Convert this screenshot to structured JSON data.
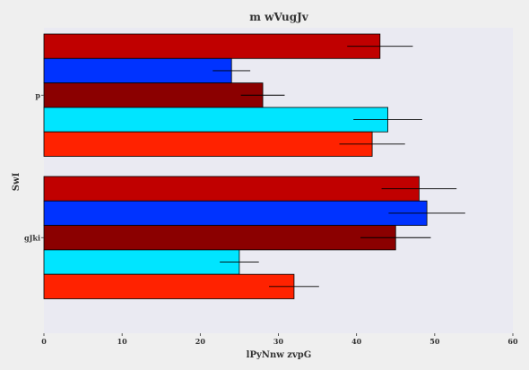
{
  "chart_data": {
    "type": "bar",
    "orientation": "horizontal",
    "title": "m wVugJv",
    "xlabel": "lPyNnw zvpG",
    "ylabel": "SwI",
    "xlim": [
      0,
      60
    ],
    "x_ticks": [
      "0",
      "10",
      "20",
      "30",
      "40",
      "50",
      "60"
    ],
    "categories": [
      "p",
      "gJki"
    ],
    "legend": "none",
    "grid": false,
    "background": "#eaeaf2",
    "series": [
      {
        "color": "#c00000",
        "values": [
          43,
          48
        ],
        "errors": [
          4.2,
          4.8
        ]
      },
      {
        "color": "#0033ff",
        "values": [
          24,
          49
        ],
        "errors": [
          2.4,
          4.9
        ]
      },
      {
        "color": "#8b0000",
        "values": [
          28,
          45
        ],
        "errors": [
          2.8,
          4.5
        ]
      },
      {
        "color": "#00e5ff",
        "values": [
          44,
          25
        ],
        "errors": [
          4.4,
          2.5
        ]
      },
      {
        "color": "#ff2200",
        "values": [
          42,
          32
        ],
        "errors": [
          4.2,
          3.2
        ]
      }
    ]
  }
}
